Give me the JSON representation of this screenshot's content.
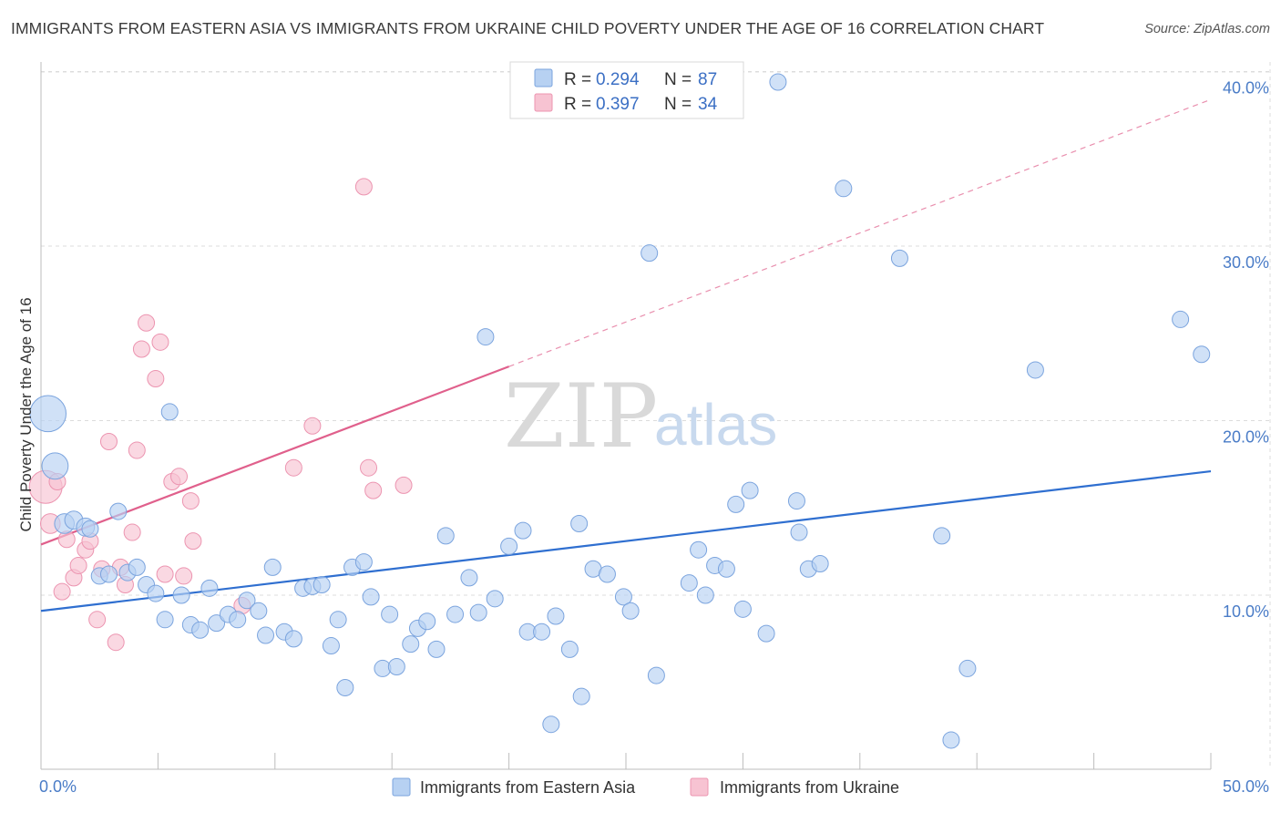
{
  "title": "IMMIGRANTS FROM EASTERN ASIA VS IMMIGRANTS FROM UKRAINE CHILD POVERTY UNDER THE AGE OF 16 CORRELATION CHART",
  "source": "Source: ZipAtlas.com",
  "watermark": {
    "zip": "ZIP",
    "atlas": "atlas"
  },
  "colors": {
    "blue_fill": "#b7d1f2",
    "blue_stroke": "#7ba4de",
    "blue_line": "#2f6fd0",
    "pink_fill": "#f7c3d2",
    "pink_stroke": "#ec94b0",
    "pink_line": "#e0608c",
    "grid": "#dcdcdc",
    "tick_label": "#4a7cc7"
  },
  "legend": {
    "rows": [
      {
        "r_label": "R = ",
        "r_value": "0.294",
        "n_label": "N = ",
        "n_value": "87",
        "color": "#b7d1f2",
        "stroke": "#7ba4de"
      },
      {
        "r_label": "R = ",
        "r_value": "0.397",
        "n_label": "N = ",
        "n_value": "34",
        "color": "#f7c3d2",
        "stroke": "#ec94b0"
      }
    ]
  },
  "chart_data": {
    "type": "scatter",
    "xlabel": "",
    "ylabel": "Child Poverty Under the Age of 16",
    "xlim": [
      0,
      50
    ],
    "ylim": [
      0,
      42
    ],
    "x_tick_labels": [
      "0.0%",
      "50.0%"
    ],
    "y_ticks": [
      10,
      20,
      30,
      40
    ],
    "y_tick_labels": [
      "10.0%",
      "20.0%",
      "30.0%",
      "40.0%"
    ],
    "grid": true,
    "legend_position": "top-center",
    "series": [
      {
        "name": "Immigrants from Eastern Asia",
        "color": "#b7d1f2",
        "trend": {
          "x": [
            0,
            50
          ],
          "y": [
            9.1,
            17.1
          ],
          "dashed_extension": false
        },
        "points": [
          [
            0.3,
            20.4,
            2.2
          ],
          [
            0.6,
            17.4,
            1.6
          ],
          [
            1.0,
            14.1,
            1.2
          ],
          [
            1.4,
            14.3,
            1.1
          ],
          [
            1.9,
            13.9,
            1.1
          ],
          [
            2.1,
            13.8,
            1.0
          ],
          [
            2.5,
            11.1,
            1.0
          ],
          [
            2.9,
            11.2,
            1.0
          ],
          [
            3.3,
            14.8,
            1.0
          ],
          [
            3.7,
            11.3,
            1.0
          ],
          [
            4.1,
            11.6,
            1.0
          ],
          [
            4.5,
            10.6,
            1.0
          ],
          [
            4.9,
            10.1,
            1.0
          ],
          [
            5.3,
            8.6,
            1.0
          ],
          [
            5.5,
            20.5,
            1.0
          ],
          [
            6.0,
            10.0,
            1.0
          ],
          [
            6.4,
            8.3,
            1.0
          ],
          [
            6.8,
            8.0,
            1.0
          ],
          [
            7.2,
            10.4,
            1.0
          ],
          [
            7.5,
            8.4,
            1.0
          ],
          [
            8.0,
            8.9,
            1.0
          ],
          [
            8.4,
            8.6,
            1.0
          ],
          [
            8.8,
            9.7,
            1.0
          ],
          [
            9.3,
            9.1,
            1.0
          ],
          [
            9.6,
            7.7,
            1.0
          ],
          [
            9.9,
            11.6,
            1.0
          ],
          [
            10.4,
            7.9,
            1.0
          ],
          [
            10.8,
            7.5,
            1.0
          ],
          [
            11.2,
            10.4,
            1.0
          ],
          [
            11.6,
            10.5,
            1.0
          ],
          [
            12.0,
            10.6,
            1.0
          ],
          [
            12.4,
            7.1,
            1.0
          ],
          [
            12.7,
            8.6,
            1.0
          ],
          [
            13.0,
            4.7,
            1.0
          ],
          [
            13.3,
            11.6,
            1.0
          ],
          [
            13.8,
            11.9,
            1.0
          ],
          [
            14.1,
            9.9,
            1.0
          ],
          [
            14.6,
            5.8,
            1.0
          ],
          [
            14.9,
            8.9,
            1.0
          ],
          [
            15.2,
            5.9,
            1.0
          ],
          [
            15.8,
            7.2,
            1.0
          ],
          [
            16.1,
            8.1,
            1.0
          ],
          [
            16.5,
            8.5,
            1.0
          ],
          [
            16.9,
            6.9,
            1.0
          ],
          [
            17.3,
            13.4,
            1.0
          ],
          [
            17.7,
            8.9,
            1.0
          ],
          [
            18.3,
            11.0,
            1.0
          ],
          [
            18.7,
            9.0,
            1.0
          ],
          [
            19.0,
            24.8,
            1.0
          ],
          [
            19.4,
            9.8,
            1.0
          ],
          [
            20.0,
            12.8,
            1.0
          ],
          [
            20.6,
            13.7,
            1.0
          ],
          [
            20.8,
            7.9,
            1.0
          ],
          [
            21.4,
            7.9,
            1.0
          ],
          [
            21.8,
            2.6,
            1.0
          ],
          [
            22.0,
            8.8,
            1.0
          ],
          [
            22.6,
            6.9,
            1.0
          ],
          [
            23.0,
            14.1,
            1.0
          ],
          [
            23.1,
            4.2,
            1.0
          ],
          [
            23.6,
            11.5,
            1.0
          ],
          [
            24.2,
            11.2,
            1.0
          ],
          [
            24.9,
            9.9,
            1.0
          ],
          [
            25.2,
            9.1,
            1.0
          ],
          [
            26.0,
            29.6,
            1.0
          ],
          [
            26.3,
            5.4,
            1.0
          ],
          [
            27.7,
            10.7,
            1.0
          ],
          [
            28.1,
            12.6,
            1.0
          ],
          [
            28.4,
            10.0,
            1.0
          ],
          [
            28.8,
            11.7,
            1.0
          ],
          [
            29.3,
            11.5,
            1.0
          ],
          [
            29.7,
            15.2,
            1.0
          ],
          [
            30.0,
            9.2,
            1.0
          ],
          [
            30.3,
            16.0,
            1.0
          ],
          [
            31.0,
            7.8,
            1.0
          ],
          [
            31.5,
            39.4,
            1.0
          ],
          [
            32.3,
            15.4,
            1.0
          ],
          [
            32.4,
            13.6,
            1.0
          ],
          [
            32.8,
            11.5,
            1.0
          ],
          [
            33.3,
            11.8,
            1.0
          ],
          [
            34.3,
            33.3,
            1.0
          ],
          [
            36.7,
            29.3,
            1.0
          ],
          [
            38.5,
            13.4,
            1.0
          ],
          [
            38.9,
            1.7,
            1.0
          ],
          [
            39.6,
            5.8,
            1.0
          ],
          [
            42.5,
            22.9,
            1.0
          ],
          [
            48.7,
            25.8,
            1.0
          ],
          [
            49.6,
            23.8,
            1.0
          ]
        ]
      },
      {
        "name": "Immigrants from Ukraine",
        "color": "#f7c3d2",
        "trend": {
          "x": [
            0,
            20
          ],
          "y": [
            12.9,
            23.1
          ],
          "dashed_to": [
            50,
            38.4
          ]
        },
        "points": [
          [
            0.2,
            16.2,
            2.0
          ],
          [
            0.4,
            14.1,
            1.2
          ],
          [
            0.7,
            16.5,
            1.0
          ],
          [
            0.9,
            10.2,
            1.0
          ],
          [
            1.1,
            13.2,
            1.0
          ],
          [
            1.4,
            11.0,
            1.0
          ],
          [
            1.6,
            11.7,
            1.0
          ],
          [
            1.9,
            12.6,
            1.0
          ],
          [
            2.1,
            13.1,
            1.0
          ],
          [
            2.4,
            8.6,
            1.0
          ],
          [
            2.6,
            11.5,
            1.0
          ],
          [
            2.9,
            18.8,
            1.0
          ],
          [
            3.2,
            7.3,
            1.0
          ],
          [
            3.4,
            11.6,
            1.0
          ],
          [
            3.6,
            10.6,
            1.0
          ],
          [
            3.9,
            13.6,
            1.0
          ],
          [
            4.1,
            18.3,
            1.0
          ],
          [
            4.3,
            24.1,
            1.0
          ],
          [
            4.5,
            25.6,
            1.0
          ],
          [
            4.9,
            22.4,
            1.0
          ],
          [
            5.1,
            24.5,
            1.0
          ],
          [
            5.3,
            11.2,
            1.0
          ],
          [
            5.6,
            16.5,
            1.0
          ],
          [
            5.9,
            16.8,
            1.0
          ],
          [
            6.1,
            11.1,
            1.0
          ],
          [
            6.4,
            15.4,
            1.0
          ],
          [
            6.5,
            13.1,
            1.0
          ],
          [
            8.6,
            9.4,
            1.0
          ],
          [
            10.8,
            17.3,
            1.0
          ],
          [
            11.6,
            19.7,
            1.0
          ],
          [
            13.8,
            33.4,
            1.0
          ],
          [
            14.0,
            17.3,
            1.0
          ],
          [
            14.2,
            16.0,
            1.0
          ],
          [
            15.5,
            16.3,
            1.0
          ]
        ]
      }
    ]
  },
  "bottom_legend": [
    {
      "label": "Immigrants from Eastern Asia",
      "color": "#b7d1f2",
      "stroke": "#7ba4de"
    },
    {
      "label": "Immigrants from Ukraine",
      "color": "#f7c3d2",
      "stroke": "#ec94b0"
    }
  ]
}
